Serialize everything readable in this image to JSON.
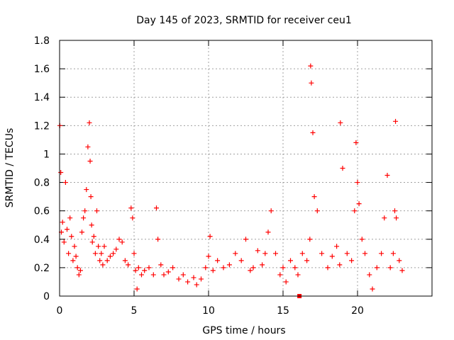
{
  "chart_data": {
    "type": "scatter",
    "title": "Day 145 of 2023, SRMTID for receiver ceu1",
    "xlabel": "GPS time / hours",
    "ylabel": "SRMTID / TECUs",
    "xlim": [
      0,
      25
    ],
    "ylim": [
      0,
      1.8
    ],
    "x_ticks": [
      0,
      5,
      10,
      15,
      20
    ],
    "x_tick_labels": [
      "0",
      "5",
      "10",
      "15",
      "20"
    ],
    "y_ticks": [
      0,
      0.2,
      0.4,
      0.6,
      0.8,
      1.0,
      1.2,
      1.4,
      1.6,
      1.8
    ],
    "y_tick_labels": [
      "0",
      "0.2",
      "0.4",
      "0.6",
      "0.8",
      "1",
      "1.2",
      "1.4",
      "1.6",
      "1.8"
    ],
    "grid": true,
    "marker": "plus",
    "series": [
      {
        "name": "SRMTID",
        "color": "#ff0000",
        "x": [
          0.02,
          0.08,
          0.12,
          0.2,
          0.3,
          0.4,
          0.5,
          0.6,
          0.7,
          0.8,
          0.9,
          1.0,
          1.1,
          1.2,
          1.3,
          1.4,
          1.5,
          1.6,
          1.7,
          1.8,
          1.9,
          2.0,
          2.05,
          2.1,
          2.15,
          2.2,
          2.3,
          2.4,
          2.5,
          2.6,
          2.7,
          2.8,
          2.9,
          3.0,
          3.2,
          3.4,
          3.6,
          3.8,
          4.0,
          4.2,
          4.4,
          4.6,
          4.8,
          4.9,
          5.0,
          5.1,
          5.2,
          5.3,
          5.5,
          5.7,
          6.0,
          6.3,
          6.5,
          6.6,
          6.8,
          7.0,
          7.3,
          7.6,
          8.0,
          8.3,
          8.6,
          9.0,
          9.2,
          9.5,
          9.8,
          10.0,
          10.1,
          10.3,
          10.6,
          11.0,
          11.4,
          11.8,
          12.2,
          12.5,
          12.8,
          13.0,
          13.3,
          13.6,
          13.8,
          14.0,
          14.2,
          14.5,
          14.8,
          15.0,
          15.2,
          15.5,
          15.8,
          16.0,
          16.3,
          16.6,
          16.8,
          16.85,
          16.9,
          17.0,
          17.1,
          17.3,
          17.6,
          18.0,
          18.3,
          18.6,
          18.8,
          18.85,
          19.0,
          19.3,
          19.6,
          19.8,
          19.9,
          20.0,
          20.1,
          20.3,
          20.5,
          20.8,
          21.0,
          21.3,
          21.6,
          21.8,
          22.0,
          22.2,
          22.4,
          22.5,
          22.55,
          22.6,
          22.8,
          23.0
        ],
        "values": [
          1.2,
          0.87,
          0.45,
          0.52,
          0.38,
          0.8,
          0.47,
          0.3,
          0.55,
          0.42,
          0.25,
          0.35,
          0.28,
          0.2,
          0.15,
          0.18,
          0.45,
          0.55,
          0.6,
          0.75,
          1.05,
          1.22,
          0.95,
          0.7,
          0.5,
          0.38,
          0.42,
          0.3,
          0.6,
          0.35,
          0.25,
          0.3,
          0.22,
          0.35,
          0.25,
          0.28,
          0.3,
          0.33,
          0.4,
          0.38,
          0.25,
          0.22,
          0.62,
          0.55,
          0.3,
          0.18,
          0.05,
          0.2,
          0.15,
          0.18,
          0.2,
          0.15,
          0.62,
          0.4,
          0.22,
          0.15,
          0.17,
          0.2,
          0.12,
          0.15,
          0.1,
          0.13,
          0.08,
          0.12,
          0.2,
          0.28,
          0.42,
          0.18,
          0.25,
          0.2,
          0.22,
          0.3,
          0.25,
          0.4,
          0.18,
          0.2,
          0.32,
          0.22,
          0.3,
          0.45,
          0.6,
          0.3,
          0.15,
          0.2,
          0.1,
          0.25,
          0.2,
          0.15,
          0.3,
          0.25,
          0.4,
          1.62,
          1.5,
          1.15,
          0.7,
          0.6,
          0.3,
          0.2,
          0.28,
          0.35,
          0.22,
          1.22,
          0.9,
          0.3,
          0.25,
          0.6,
          1.08,
          0.8,
          0.65,
          0.4,
          0.3,
          0.15,
          0.05,
          0.2,
          0.3,
          0.55,
          0.85,
          0.2,
          0.3,
          0.6,
          1.23,
          0.55,
          0.25,
          0.18
        ],
        "extra_marker": {
          "x": 16.1,
          "y": 0.0,
          "shape": "square"
        }
      }
    ]
  }
}
